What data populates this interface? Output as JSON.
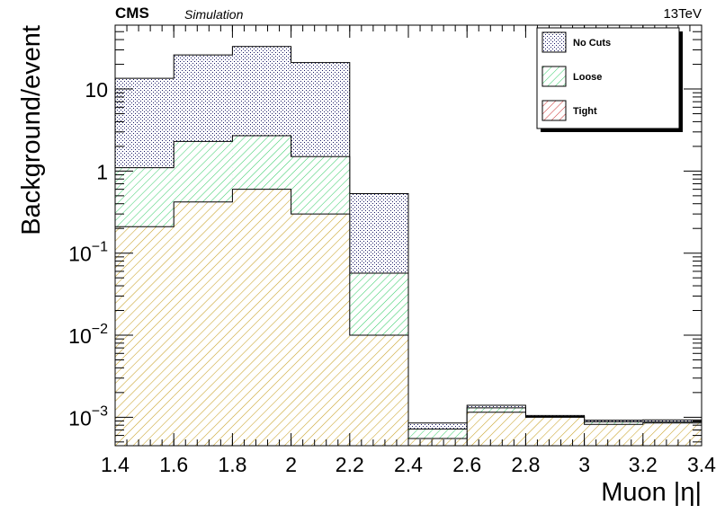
{
  "header": {
    "experiment": "CMS",
    "tag": "Simulation",
    "energy": "13TeV"
  },
  "colors": {
    "no_cuts": "#1a1a66",
    "loose": "#33cc66",
    "tight": "#cc3333",
    "tight_fill": "#c9a227"
  },
  "chart_data": {
    "type": "bar",
    "histogram": true,
    "xlabel": "Muon |η|",
    "ylabel": "Background/event",
    "xlim": [
      1.4,
      3.4
    ],
    "ylim": [
      0.00045,
      60
    ],
    "yscale": "log",
    "bin_edges": [
      1.4,
      1.6,
      1.8,
      2.0,
      2.2,
      2.4,
      2.6,
      2.8,
      3.0,
      3.2,
      3.4
    ],
    "x_ticks": [
      "1.4",
      "1.6",
      "1.8",
      "2",
      "2.2",
      "2.4",
      "2.6",
      "2.8",
      "3",
      "3.2",
      "3.4"
    ],
    "y_ticks": [
      {
        "base": "10",
        "exp": "−3",
        "value": 0.001
      },
      {
        "base": "10",
        "exp": "−2",
        "value": 0.01
      },
      {
        "base": "10",
        "exp": "−1",
        "value": 0.1
      },
      {
        "base": "1",
        "exp": "",
        "value": 1
      },
      {
        "base": "10",
        "exp": "",
        "value": 10
      }
    ],
    "series": [
      {
        "name": "No Cuts",
        "pattern": "dots",
        "values": [
          13.5,
          26,
          33,
          21,
          0.53,
          0.00085,
          0.0014,
          0.00105,
          0.00092,
          0.00093
        ]
      },
      {
        "name": "Loose",
        "pattern": "diag-green",
        "values": [
          1.1,
          2.3,
          2.7,
          1.5,
          0.057,
          0.00072,
          0.0013,
          0.00102,
          0.00088,
          0.00088
        ]
      },
      {
        "name": "Tight",
        "pattern": "diag-red",
        "values": [
          0.21,
          0.42,
          0.6,
          0.3,
          0.01,
          0.00055,
          0.00115,
          0.001,
          0.00082,
          0.00085
        ]
      }
    ],
    "legend": {
      "position": "top-right"
    },
    "grid": false
  }
}
